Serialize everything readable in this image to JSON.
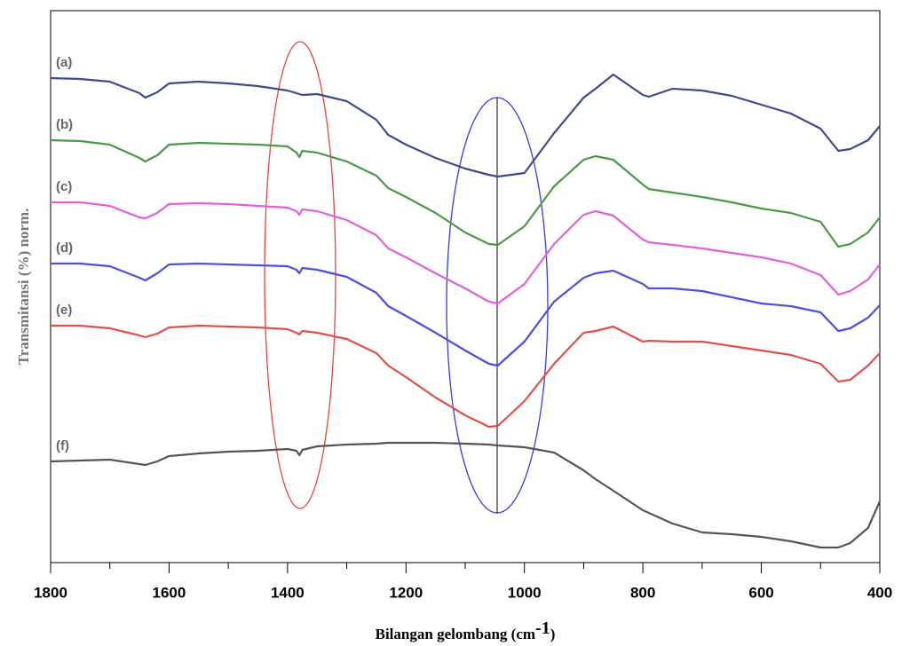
{
  "chart_data": {
    "type": "line",
    "xlabel": "Bilangan gelombang (cm",
    "xlabel_sup": "-1",
    "xlabel_end": ")",
    "ylabel": "Transmitansi (%) norm.",
    "x": [
      1800,
      1750,
      1700,
      1650,
      1640,
      1620,
      1600,
      1550,
      1500,
      1450,
      1400,
      1385,
      1380,
      1375,
      1350,
      1300,
      1250,
      1230,
      1200,
      1150,
      1100,
      1060,
      1045,
      1000,
      950,
      900,
      880,
      850,
      800,
      790,
      750,
      700,
      650,
      600,
      550,
      500,
      470,
      450,
      420,
      400
    ],
    "series": [
      {
        "name": "(a)",
        "color": "#3f4a8c",
        "values": [
          546,
          545,
          542,
          529,
          524,
          530,
          540,
          542,
          540,
          537,
          532,
          529,
          528,
          527,
          528,
          520,
          499,
          482,
          471,
          456,
          444,
          437,
          435,
          439,
          484,
          524,
          534,
          550,
          527,
          525,
          534,
          532,
          526,
          516,
          506,
          489,
          464,
          466,
          476,
          492
        ]
      },
      {
        "name": "(b)",
        "color": "#4a9a48",
        "values": [
          476,
          475,
          471,
          456,
          452,
          459,
          471,
          473,
          472,
          471,
          469,
          462,
          457,
          464,
          462,
          452,
          436,
          422,
          412,
          394,
          372,
          359,
          358,
          379,
          424,
          454,
          458,
          454,
          426,
          421,
          417,
          412,
          406,
          399,
          394,
          384,
          356,
          359,
          372,
          389
        ]
      },
      {
        "name": "(c)",
        "color": "#e060e0",
        "values": [
          406,
          406,
          402,
          389,
          388,
          394,
          404,
          405,
          404,
          402,
          400,
          396,
          392,
          398,
          396,
          386,
          369,
          354,
          344,
          326,
          309,
          294,
          292,
          314,
          359,
          392,
          396,
          391,
          364,
          361,
          358,
          354,
          349,
          344,
          337,
          324,
          302,
          306,
          319,
          336
        ]
      },
      {
        "name": "(d)",
        "color": "#4b50e0",
        "values": [
          337,
          337,
          334,
          321,
          318,
          326,
          336,
          337,
          336,
          335,
          334,
          330,
          326,
          332,
          330,
          322,
          304,
          289,
          278,
          259,
          239,
          224,
          222,
          249,
          294,
          321,
          326,
          329,
          314,
          309,
          309,
          306,
          299,
          292,
          289,
          282,
          261,
          264,
          276,
          290
        ]
      },
      {
        "name": "(e)",
        "color": "#e0504a",
        "values": [
          267,
          267,
          264,
          256,
          254,
          258,
          265,
          267,
          266,
          265,
          263,
          259,
          257,
          261,
          259,
          252,
          236,
          222,
          209,
          186,
          166,
          153,
          154,
          182,
          224,
          259,
          261,
          266,
          249,
          250,
          249,
          249,
          244,
          239,
          234,
          224,
          204,
          206,
          222,
          236
        ]
      },
      {
        "name": "(f)",
        "color": "#555555",
        "values": [
          114,
          115,
          116,
          111,
          110,
          114,
          120,
          123,
          125,
          126,
          128,
          126,
          121,
          127,
          131,
          133,
          134,
          135,
          135,
          135,
          134,
          133,
          132,
          130,
          124,
          104,
          94,
          81,
          59,
          56,
          44,
          34,
          32,
          29,
          24,
          17,
          17,
          22,
          39,
          69
        ]
      }
    ],
    "xlim": [
      1800,
      400
    ],
    "xticks": [
      1800,
      1600,
      1400,
      1200,
      1000,
      800,
      600,
      400
    ],
    "xminorticks": [
      1700,
      1500,
      1300,
      1100,
      900,
      700,
      500
    ],
    "ylim": [
      0,
      622
    ],
    "grid": false
  }
}
